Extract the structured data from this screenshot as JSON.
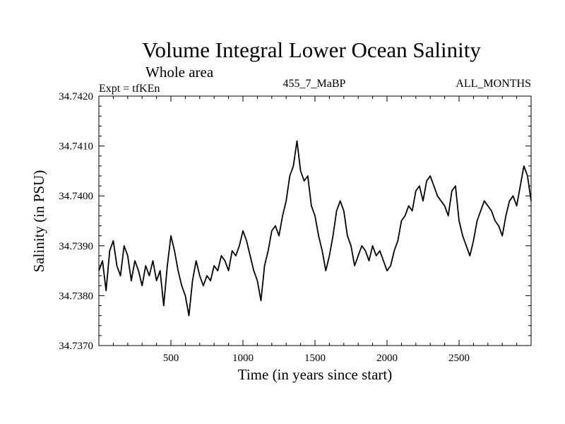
{
  "chart_data": {
    "type": "line",
    "title": "Volume Integral Lower Ocean Salinity",
    "subtitle": "Whole area",
    "expt_label": "Expt = tfKEn",
    "run_label": "455_7_MaBP",
    "months_label": "ALL_MONTHS",
    "xlabel": "Time (in years since start)",
    "ylabel": "Salinity (in PSU)",
    "xlim": [
      0,
      3000
    ],
    "ylim": [
      34.737,
      34.742
    ],
    "xticks": [
      500,
      1000,
      1500,
      2000,
      2500
    ],
    "xtick_labels": [
      "500",
      "1000",
      "1500",
      "2000",
      "2500"
    ],
    "yticks": [
      34.737,
      34.738,
      34.739,
      34.74,
      34.741,
      34.742
    ],
    "ytick_labels": [
      "34.7370",
      "34.7380",
      "34.7390",
      "34.7400",
      "34.7410",
      "34.7420"
    ],
    "grid": false,
    "legend": "none",
    "line_color": "#000000",
    "series": [
      {
        "x": [
          0,
          25,
          50,
          75,
          100,
          125,
          150,
          175,
          200,
          225,
          250,
          275,
          300,
          325,
          350,
          375,
          400,
          425,
          450,
          475,
          500,
          525,
          550,
          575,
          600,
          625,
          650,
          675,
          700,
          725,
          750,
          775,
          800,
          825,
          850,
          875,
          900,
          925,
          950,
          975,
          1000,
          1025,
          1050,
          1075,
          1100,
          1125,
          1150,
          1175,
          1200,
          1225,
          1250,
          1275,
          1300,
          1325,
          1350,
          1375,
          1400,
          1425,
          1450,
          1475,
          1500,
          1525,
          1550,
          1575,
          1600,
          1625,
          1650,
          1675,
          1700,
          1725,
          1750,
          1775,
          1800,
          1825,
          1850,
          1875,
          1900,
          1925,
          1950,
          1975,
          2000,
          2025,
          2050,
          2075,
          2100,
          2125,
          2150,
          2175,
          2200,
          2225,
          2250,
          2275,
          2300,
          2325,
          2350,
          2375,
          2400,
          2425,
          2450,
          2475,
          2500,
          2525,
          2550,
          2575,
          2600,
          2625,
          2650,
          2675,
          2700,
          2725,
          2750,
          2775,
          2800,
          2825,
          2850,
          2875,
          2900,
          2925,
          2950,
          2975,
          3000
        ],
        "y": [
          34.7385,
          34.7387,
          34.7381,
          34.7389,
          34.7391,
          34.7386,
          34.7384,
          34.739,
          34.7388,
          34.7383,
          34.7387,
          34.7385,
          34.7382,
          34.7386,
          34.7384,
          34.7387,
          34.7383,
          34.7385,
          34.7378,
          34.7386,
          34.7392,
          34.7389,
          34.7385,
          34.7382,
          34.738,
          34.7376,
          34.7383,
          34.7387,
          34.7384,
          34.7382,
          34.7384,
          34.7383,
          34.7386,
          34.7385,
          34.7388,
          34.7387,
          34.7385,
          34.7389,
          34.7388,
          34.739,
          34.7393,
          34.7391,
          34.7388,
          34.7385,
          34.7383,
          34.7379,
          34.7386,
          34.7389,
          34.7393,
          34.7394,
          34.7392,
          34.7396,
          34.7399,
          34.7404,
          34.7406,
          34.7411,
          34.7405,
          34.7403,
          34.7404,
          34.7398,
          34.7396,
          34.7392,
          34.7389,
          34.7385,
          34.7388,
          34.7392,
          34.7397,
          34.7399,
          34.7397,
          34.7392,
          34.739,
          34.7386,
          34.7388,
          34.739,
          34.7389,
          34.7387,
          34.739,
          34.7388,
          34.7389,
          34.7387,
          34.7385,
          34.7386,
          34.7389,
          34.7391,
          34.7395,
          34.7396,
          34.7398,
          34.7397,
          34.7401,
          34.7402,
          34.7399,
          34.7403,
          34.7404,
          34.7402,
          34.74,
          34.7399,
          34.7398,
          34.7396,
          34.7401,
          34.7402,
          34.7395,
          34.7392,
          34.739,
          34.7388,
          34.7391,
          34.7395,
          34.7397,
          34.7399,
          34.7398,
          34.7397,
          34.7395,
          34.7394,
          34.7392,
          34.7396,
          34.7399,
          34.74,
          34.7398,
          34.7402,
          34.7406,
          34.7404,
          34.7399
        ]
      }
    ]
  }
}
